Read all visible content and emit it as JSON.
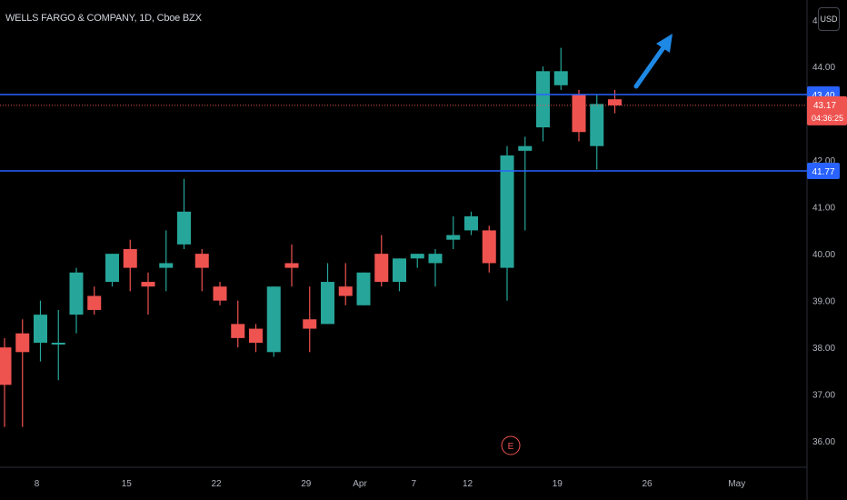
{
  "symbol_title": "WELLS FARGO & COMPANY, 1D, Cboe BZX",
  "currency_button": "USD",
  "colors": {
    "background": "#000000",
    "up": "#26a69a",
    "down": "#ef5350",
    "hline": "#2962ff",
    "axis_text": "#b2b5be",
    "price_line": "#ef5350",
    "arrow": "#1e88e5"
  },
  "price_axis": {
    "ticks": [
      "36.00",
      "37.00",
      "38.00",
      "39.00",
      "40.00",
      "41.00",
      "42.00",
      "44.00",
      "45"
    ]
  },
  "time_axis": {
    "labels": [
      "8",
      "15",
      "22",
      "29",
      "Apr",
      "7",
      "12",
      "19",
      "26",
      "May"
    ]
  },
  "horizontal_lines": [
    {
      "price": 43.4,
      "label": "43.40"
    },
    {
      "price": 41.77,
      "label": "41.77"
    }
  ],
  "current_price": {
    "label": "43.17",
    "countdown": "04:36:25",
    "price": 43.17
  },
  "earnings_marker": "E",
  "chart_data": {
    "type": "candlestick",
    "ylim": [
      35.5,
      45.2
    ],
    "candles": [
      {
        "date": "Mar 4",
        "open": 38.0,
        "high": 38.2,
        "low": 36.3,
        "close": 37.2
      },
      {
        "date": "Mar 5",
        "open": 38.3,
        "high": 38.6,
        "low": 36.3,
        "close": 37.9
      },
      {
        "date": "Mar 6",
        "open": 38.1,
        "high": 39.0,
        "low": 37.7,
        "close": 38.7
      },
      {
        "date": "Mar 7",
        "open": 38.1,
        "high": 38.8,
        "low": 37.3,
        "close": 38.1
      },
      {
        "date": "Mar 8",
        "open": 38.7,
        "high": 39.7,
        "low": 38.3,
        "close": 39.6
      },
      {
        "date": "Mar 9",
        "open": 39.1,
        "high": 39.3,
        "low": 38.7,
        "close": 38.8
      },
      {
        "date": "Mar 10",
        "open": 39.4,
        "high": 40.0,
        "low": 39.3,
        "close": 40.0
      },
      {
        "date": "Mar 11",
        "open": 40.1,
        "high": 40.3,
        "low": 39.2,
        "close": 39.7
      },
      {
        "date": "Mar 12",
        "open": 39.4,
        "high": 39.6,
        "low": 38.7,
        "close": 39.3
      },
      {
        "date": "Mar 13",
        "open": 39.7,
        "high": 40.5,
        "low": 39.2,
        "close": 39.8
      },
      {
        "date": "Mar 14",
        "open": 40.2,
        "high": 41.6,
        "low": 40.1,
        "close": 40.9
      },
      {
        "date": "Mar 15",
        "open": 40.0,
        "high": 40.1,
        "low": 39.2,
        "close": 39.7
      },
      {
        "date": "Mar 16",
        "open": 39.3,
        "high": 39.4,
        "low": 38.9,
        "close": 39.0
      },
      {
        "date": "Mar 17",
        "open": 38.5,
        "high": 39.0,
        "low": 38.0,
        "close": 38.2
      },
      {
        "date": "Mar 18",
        "open": 38.4,
        "high": 38.5,
        "low": 37.9,
        "close": 38.1
      },
      {
        "date": "Mar 19",
        "open": 37.9,
        "high": 39.3,
        "low": 37.8,
        "close": 39.3
      },
      {
        "date": "Mar 20",
        "open": 39.8,
        "high": 40.2,
        "low": 39.3,
        "close": 39.7
      },
      {
        "date": "Mar 21",
        "open": 38.6,
        "high": 39.3,
        "low": 37.9,
        "close": 38.4
      },
      {
        "date": "Mar 22",
        "open": 38.5,
        "high": 39.8,
        "low": 38.5,
        "close": 39.4
      },
      {
        "date": "Mar 23",
        "open": 39.3,
        "high": 39.8,
        "low": 38.9,
        "close": 39.1
      },
      {
        "date": "Mar 24",
        "open": 38.9,
        "high": 39.6,
        "low": 38.9,
        "close": 39.6
      },
      {
        "date": "Mar 25",
        "open": 40.0,
        "high": 40.4,
        "low": 39.3,
        "close": 39.4
      },
      {
        "date": "Mar 26",
        "open": 39.4,
        "high": 39.9,
        "low": 39.2,
        "close": 39.9
      },
      {
        "date": "Mar 27",
        "open": 39.9,
        "high": 40.0,
        "low": 39.7,
        "close": 40.0
      },
      {
        "date": "Mar 28",
        "open": 39.8,
        "high": 40.1,
        "low": 39.3,
        "close": 40.0
      },
      {
        "date": "Mar 29",
        "open": 40.3,
        "high": 40.8,
        "low": 40.1,
        "close": 40.4
      },
      {
        "date": "Mar 30",
        "open": 40.5,
        "high": 40.9,
        "low": 40.4,
        "close": 40.8
      },
      {
        "date": "Mar 31",
        "open": 40.5,
        "high": 40.6,
        "low": 39.6,
        "close": 39.8
      },
      {
        "date": "Apr 1",
        "open": 39.7,
        "high": 42.3,
        "low": 39.0,
        "close": 42.1
      },
      {
        "date": "Apr 2",
        "open": 42.2,
        "high": 42.5,
        "low": 40.5,
        "close": 42.3
      },
      {
        "date": "Apr 3",
        "open": 42.7,
        "high": 44.0,
        "low": 42.4,
        "close": 43.9
      },
      {
        "date": "Apr 4",
        "open": 43.6,
        "high": 44.4,
        "low": 43.5,
        "close": 43.9
      },
      {
        "date": "Apr 5",
        "open": 43.4,
        "high": 43.5,
        "low": 42.4,
        "close": 42.6
      },
      {
        "date": "Apr 6",
        "open": 42.3,
        "high": 43.4,
        "low": 41.8,
        "close": 43.2
      },
      {
        "date": "Apr 7",
        "open": 43.3,
        "high": 43.5,
        "low": 43.0,
        "close": 43.17
      }
    ]
  }
}
